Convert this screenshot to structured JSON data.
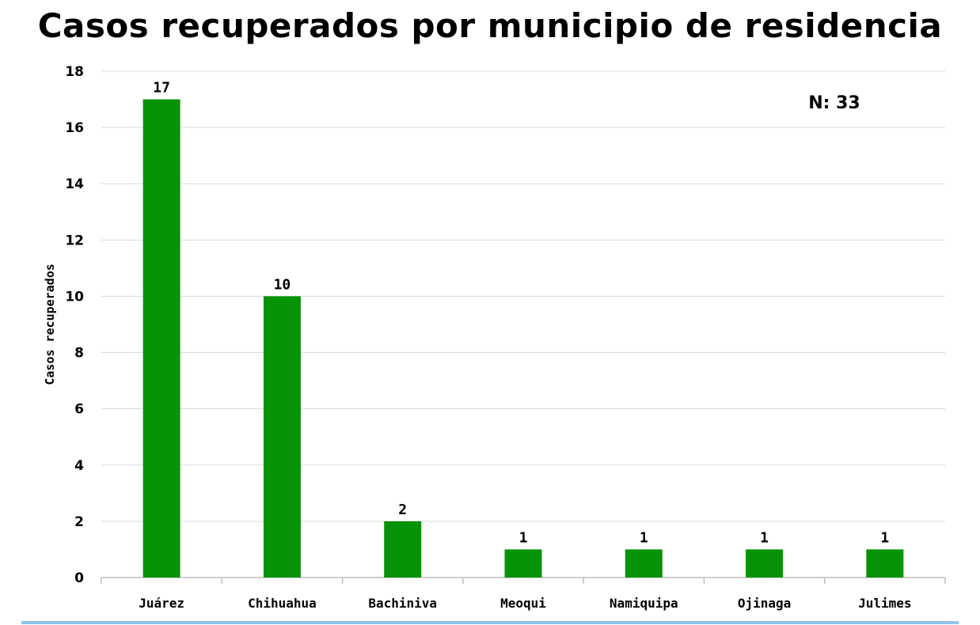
{
  "chart_data": {
    "type": "bar",
    "title": "Casos recuperados por municipio de residencia",
    "xlabel": "",
    "ylabel": "Casos recuperados",
    "categories": [
      "Juárez",
      "Chihuahua",
      "Bachiniva",
      "Meoqui",
      "Namiquipa",
      "Ojinaga",
      "Julimes"
    ],
    "series": [
      {
        "values": [
          17,
          10,
          2,
          1,
          1,
          1,
          1
        ]
      }
    ],
    "ylim": [
      0,
      18
    ],
    "yticks": [
      "0",
      "2",
      "4",
      "6",
      "8",
      "10",
      "12",
      "14",
      "16",
      "18"
    ],
    "annotation": "N: 33",
    "bar_color": "#079307",
    "grid": true,
    "legend": "none"
  },
  "colors": {
    "bar": "#079307",
    "grid": "#d9d9d9",
    "axis": "#bfbfbf",
    "rule": "#8ec5ea"
  }
}
